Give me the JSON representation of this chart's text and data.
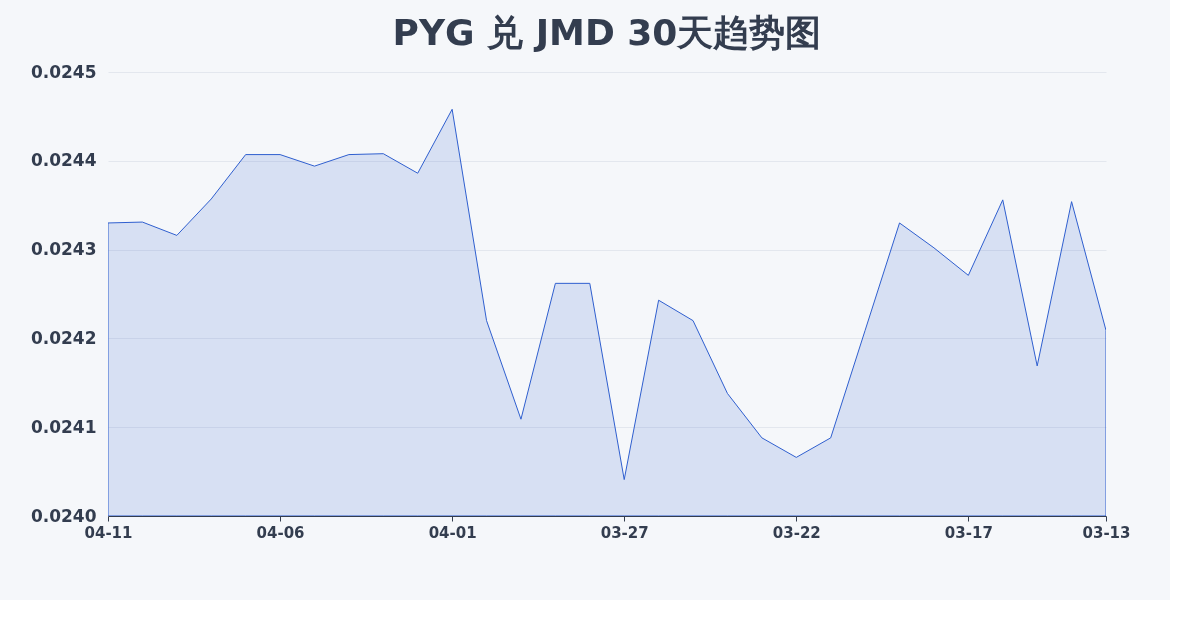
{
  "chart_data": {
    "type": "area",
    "title": "PYG 兑 JMD 30天趋势图",
    "categories": [
      "04-11",
      null,
      null,
      null,
      null,
      "04-06",
      null,
      null,
      null,
      null,
      "04-01",
      null,
      null,
      null,
      null,
      "03-27",
      null,
      null,
      null,
      null,
      "03-22",
      null,
      null,
      null,
      null,
      "03-17",
      null,
      null,
      null,
      "03-13"
    ],
    "series": [
      {
        "color": "#2f5fcf",
        "values": [
          0.02433,
          0.024331,
          0.024316,
          0.024357,
          0.024407,
          0.024407,
          0.024394,
          0.024407,
          0.024408,
          0.024386,
          0.024458,
          0.02422,
          0.024109,
          0.024262,
          0.024262,
          0.024041,
          0.024243,
          0.02422,
          0.024138,
          0.024088,
          0.024066,
          0.024088,
          0.024209,
          0.02433,
          0.024302,
          0.024271,
          0.024356,
          0.024169,
          0.024354,
          0.024209
        ]
      }
    ],
    "ylim": [
      0.024,
      0.0245
    ],
    "yticks": [
      {
        "value": 0.024,
        "label": "0.0240"
      },
      {
        "value": 0.0241,
        "label": "0.0241"
      },
      {
        "value": 0.0242,
        "label": "0.0242"
      },
      {
        "value": 0.0243,
        "label": "0.0243"
      },
      {
        "value": 0.0244,
        "label": "0.0244"
      },
      {
        "value": 0.0245,
        "label": "0.0245"
      }
    ],
    "grid": "y"
  }
}
